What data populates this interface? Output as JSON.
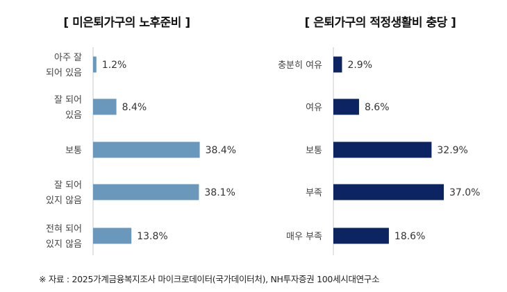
{
  "chart_data": [
    {
      "type": "bar",
      "orientation": "horizontal",
      "title": "[ 미은퇴가구의 노후준비 ]",
      "color": "#6a98bd",
      "categories": [
        [
          "아주 잘",
          "되어 있음"
        ],
        [
          "잘 되어",
          "있음"
        ],
        [
          "보통"
        ],
        [
          "잘 되어",
          "있지 않음"
        ],
        [
          "전혀 되어",
          "있지 않음"
        ]
      ],
      "values": [
        1.2,
        8.4,
        38.4,
        38.1,
        13.8
      ],
      "value_labels": [
        "1.2%",
        "8.4%",
        "38.4%",
        "38.1%",
        "13.8%"
      ],
      "xlim": [
        0,
        40
      ],
      "grid": false
    },
    {
      "type": "bar",
      "orientation": "horizontal",
      "title": "[ 은퇴가구의 적정생활비 충당 ]",
      "color": "#0c2461",
      "categories": [
        [
          "충분히 여유"
        ],
        [
          "여유"
        ],
        [
          "보통"
        ],
        [
          "부족"
        ],
        [
          "매우 부족"
        ]
      ],
      "values": [
        2.9,
        8.6,
        32.9,
        37.0,
        18.6
      ],
      "value_labels": [
        "2.9%",
        "8.6%",
        "32.9%",
        "37.0%",
        "18.6%"
      ],
      "xlim": [
        0,
        37
      ],
      "grid": false
    }
  ],
  "source": "※ 자료 : 2025가계금융복지조사 마이크로데이터(국가데이터처), NH투자증권 100세시대연구소"
}
